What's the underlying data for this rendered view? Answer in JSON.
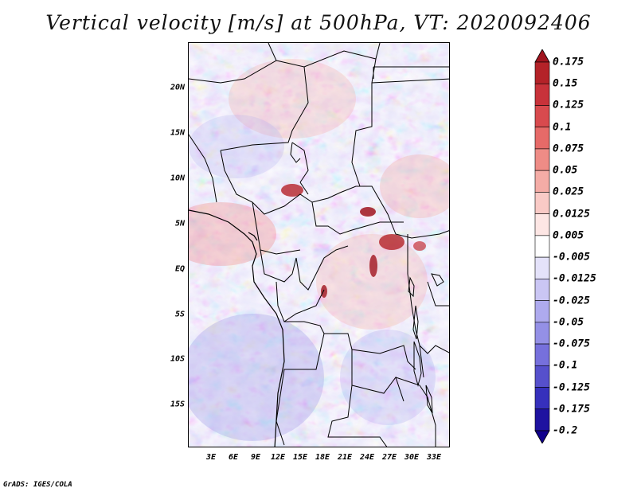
{
  "title": "Vertical velocity [m/s] at 500hPa, VT: 2020092406",
  "credit": "GrADS: IGES/COLA",
  "map": {
    "variable": "Vertical velocity",
    "units": "m/s",
    "level": "500hPa",
    "valid_time": "2020092406",
    "lat_labels": [
      "20N",
      "15N",
      "10N",
      "5N",
      "EQ",
      "5S",
      "10S",
      "15S"
    ],
    "lon_labels": [
      "3E",
      "6E",
      "9E",
      "12E",
      "15E",
      "18E",
      "21E",
      "24E",
      "27E",
      "30E",
      "33E"
    ]
  },
  "colorbar": {
    "labels": [
      "0.175",
      "0.15",
      "0.125",
      "0.1",
      "0.075",
      "0.05",
      "0.025",
      "0.0125",
      "0.005",
      "-0.005",
      "-0.0125",
      "-0.025",
      "-0.05",
      "-0.075",
      "-0.1",
      "-0.125",
      "-0.175",
      "-0.2"
    ],
    "colors": [
      "#a0141e",
      "#b42228",
      "#c8323a",
      "#d84a4e",
      "#e66a68",
      "#ee8c86",
      "#f4aca6",
      "#f9cac6",
      "#fde6e4",
      "#ffffff",
      "#e4e2fa",
      "#cac6f4",
      "#aeaaee",
      "#9490e6",
      "#7670dc",
      "#5650cc",
      "#3630bc",
      "#1e12a0",
      "#10008c"
    ]
  },
  "colors": {
    "positive_accent": "#c8323a",
    "negative_accent": "#5650cc",
    "border_line": "#000000"
  }
}
